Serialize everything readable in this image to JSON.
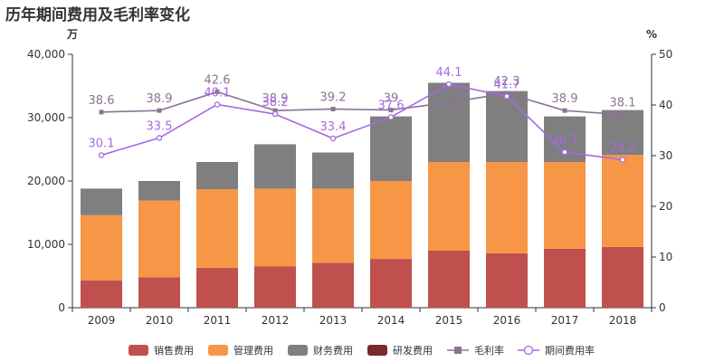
{
  "title": "历年期间费用及毛利率变化",
  "chart_data": {
    "type": "bar",
    "stacked": true,
    "categories": [
      "2009",
      "2010",
      "2011",
      "2012",
      "2013",
      "2014",
      "2015",
      "2016",
      "2017",
      "2018"
    ],
    "y_left_unit": "万",
    "y_right_unit": "%",
    "y_left_ticks": [
      "0",
      "10,000",
      "20,000",
      "30,000",
      "40,000"
    ],
    "y_right_ticks": [
      "0",
      "10",
      "20",
      "30",
      "40",
      "50"
    ],
    "ylim_left": [
      0,
      40000
    ],
    "ylim_right": [
      0,
      50
    ],
    "grid": false,
    "legend_position": "bottom",
    "series": [
      {
        "name": "销售费用",
        "kind": "bar",
        "color": "#c0504d",
        "values": [
          4300,
          4800,
          6300,
          6500,
          7100,
          7700,
          9000,
          8600,
          9300,
          9600
        ]
      },
      {
        "name": "管理费用",
        "kind": "bar",
        "color": "#f79646",
        "values": [
          10300,
          12100,
          12400,
          12300,
          11700,
          12300,
          14000,
          14400,
          13700,
          14500
        ]
      },
      {
        "name": "财务费用",
        "kind": "bar",
        "color": "#7f7f7f",
        "values": [
          4200,
          3100,
          4300,
          7000,
          5700,
          10200,
          12500,
          11200,
          7200,
          7100
        ]
      },
      {
        "name": "研发费用",
        "kind": "bar",
        "color": "#7b2a2a",
        "values": [
          0,
          0,
          0,
          0,
          0,
          0,
          0,
          0,
          0,
          0
        ]
      },
      {
        "name": "毛利率",
        "kind": "line",
        "axis": "right",
        "color": "#8c7396",
        "marker": "square",
        "values": [
          38.6,
          38.9,
          42.6,
          38.9,
          39.2,
          39,
          40.5,
          42.3,
          38.9,
          38.1
        ],
        "labels": [
          "38.6",
          "38.9",
          "42.6",
          "38.9",
          "39.2",
          "39",
          "40.5",
          "42.3",
          "38.9",
          "38.1"
        ]
      },
      {
        "name": "期间费用率",
        "kind": "line",
        "axis": "right",
        "color": "#a868e0",
        "marker": "circle",
        "values": [
          30.1,
          33.5,
          40.1,
          38.2,
          33.4,
          37.6,
          44.1,
          41.7,
          30.7,
          29.2
        ],
        "labels": [
          "30.1",
          "33.5",
          "40.1",
          "38.2",
          "33.4",
          "37.6",
          "44.1",
          "41.7",
          "30.7",
          "29.2"
        ]
      }
    ]
  }
}
